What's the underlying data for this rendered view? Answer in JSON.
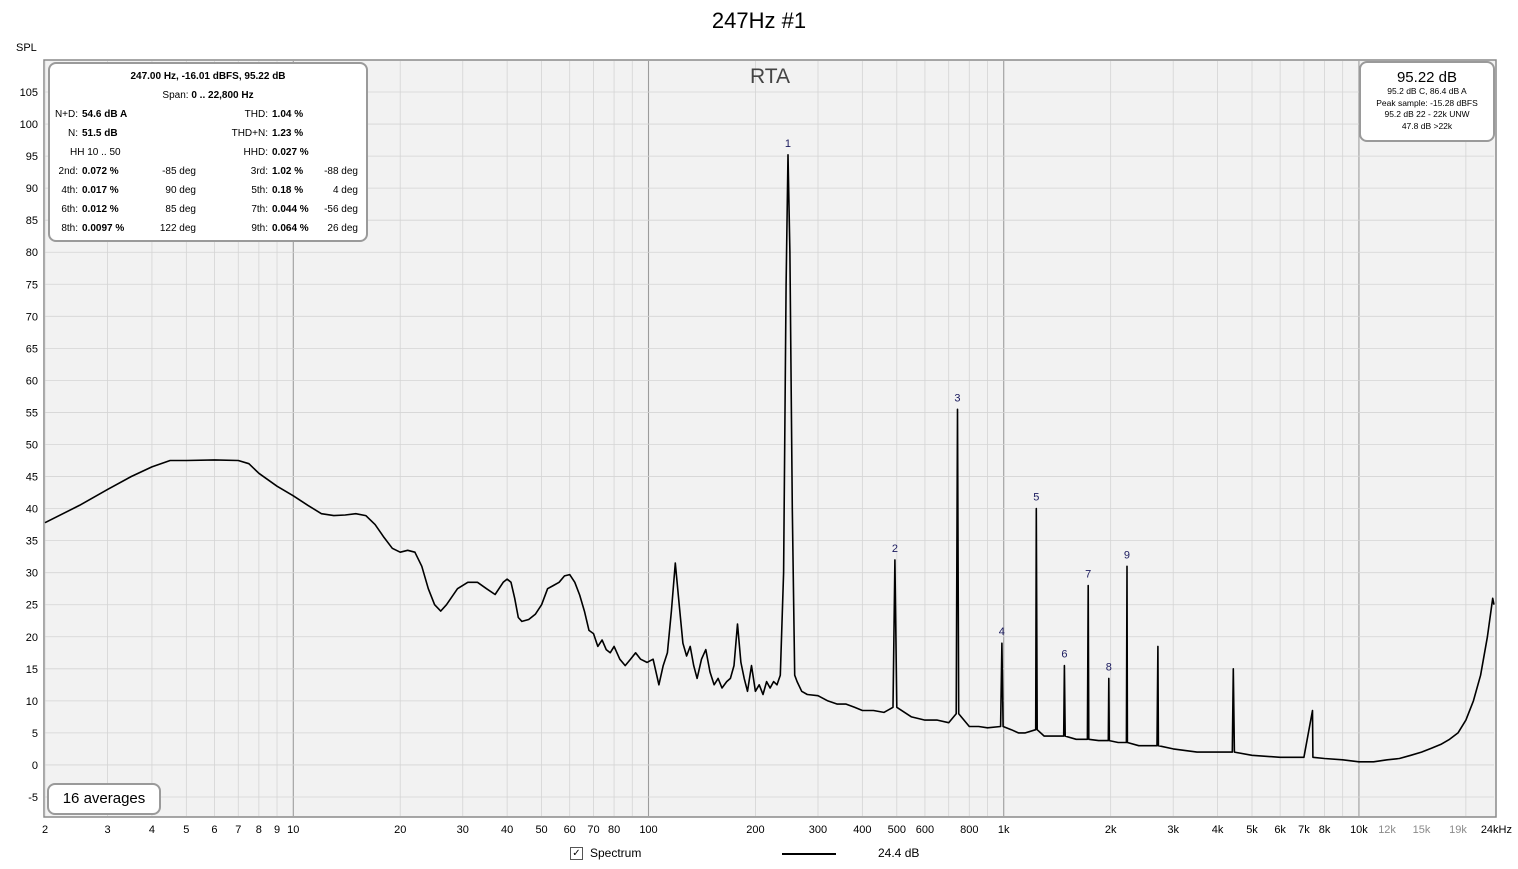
{
  "chart_data": {
    "type": "line",
    "title": "247Hz #1",
    "ylabel": "SPL",
    "plot_label": "RTA",
    "x_scale": "log",
    "xlim": [
      2,
      24000
    ],
    "ylim": [
      -8,
      110
    ],
    "grid": true,
    "y_ticks": [
      105,
      100,
      95,
      90,
      85,
      80,
      75,
      70,
      65,
      60,
      55,
      50,
      45,
      40,
      35,
      30,
      25,
      20,
      15,
      10,
      5,
      0,
      -5
    ],
    "x_ticks": [
      {
        "v": 2,
        "t": "2"
      },
      {
        "v": 3,
        "t": "3"
      },
      {
        "v": 4,
        "t": "4"
      },
      {
        "v": 5,
        "t": "5"
      },
      {
        "v": 6,
        "t": "6"
      },
      {
        "v": 7,
        "t": "7"
      },
      {
        "v": 8,
        "t": "8"
      },
      {
        "v": 9,
        "t": "9"
      },
      {
        "v": 10,
        "t": "10"
      },
      {
        "v": 20,
        "t": "20"
      },
      {
        "v": 30,
        "t": "30"
      },
      {
        "v": 40,
        "t": "40"
      },
      {
        "v": 50,
        "t": "50"
      },
      {
        "v": 60,
        "t": "60"
      },
      {
        "v": 70,
        "t": "70"
      },
      {
        "v": 80,
        "t": "80"
      },
      {
        "v": 100,
        "t": "100"
      },
      {
        "v": 200,
        "t": "200"
      },
      {
        "v": 300,
        "t": "300"
      },
      {
        "v": 400,
        "t": "400"
      },
      {
        "v": 500,
        "t": "500"
      },
      {
        "v": 600,
        "t": "600"
      },
      {
        "v": 800,
        "t": "800"
      },
      {
        "v": 1000,
        "t": "1k"
      },
      {
        "v": 2000,
        "t": "2k"
      },
      {
        "v": 3000,
        "t": "3k"
      },
      {
        "v": 4000,
        "t": "4k"
      },
      {
        "v": 5000,
        "t": "5k"
      },
      {
        "v": 6000,
        "t": "6k"
      },
      {
        "v": 7000,
        "t": "7k"
      },
      {
        "v": 8000,
        "t": "8k"
      },
      {
        "v": 10000,
        "t": "10k"
      },
      {
        "v": 12000,
        "t": "12k",
        "muted": true
      },
      {
        "v": 15000,
        "t": "15k",
        "muted": true
      },
      {
        "v": 19000,
        "t": "19k",
        "muted": true
      },
      {
        "v": 24000,
        "t": "24kHz"
      }
    ],
    "series": [
      {
        "name": "Spectrum",
        "color": "#000000",
        "points": [
          [
            2,
            37.8
          ],
          [
            2.5,
            40.5
          ],
          [
            3,
            43
          ],
          [
            3.5,
            45
          ],
          [
            4,
            46.5
          ],
          [
            4.5,
            47.5
          ],
          [
            5,
            47.5
          ],
          [
            6,
            47.6
          ],
          [
            7,
            47.5
          ],
          [
            7.5,
            47
          ],
          [
            8,
            45.5
          ],
          [
            9,
            43.5
          ],
          [
            10,
            42
          ],
          [
            11,
            40.5
          ],
          [
            12,
            39.2
          ],
          [
            13,
            38.9
          ],
          [
            14,
            39
          ],
          [
            15,
            39.2
          ],
          [
            16,
            38.9
          ],
          [
            17,
            37.5
          ],
          [
            18,
            35.5
          ],
          [
            19,
            33.8
          ],
          [
            20,
            33.2
          ],
          [
            21,
            33.5
          ],
          [
            22,
            33.2
          ],
          [
            23,
            31
          ],
          [
            24,
            27.5
          ],
          [
            25,
            25
          ],
          [
            26,
            24
          ],
          [
            27,
            25
          ],
          [
            29,
            27.5
          ],
          [
            31,
            28.5
          ],
          [
            33,
            28.5
          ],
          [
            35,
            27.5
          ],
          [
            37,
            26.6
          ],
          [
            39,
            28.5
          ],
          [
            40,
            29
          ],
          [
            41,
            28.5
          ],
          [
            42,
            26
          ],
          [
            43,
            23
          ],
          [
            44,
            22.4
          ],
          [
            46,
            22.7
          ],
          [
            48,
            23.5
          ],
          [
            50,
            25
          ],
          [
            52,
            27.5
          ],
          [
            54,
            28
          ],
          [
            56,
            28.5
          ],
          [
            58,
            29.5
          ],
          [
            60,
            29.7
          ],
          [
            62,
            28.5
          ],
          [
            64,
            26.5
          ],
          [
            66,
            24
          ],
          [
            68,
            21
          ],
          [
            70,
            20.5
          ],
          [
            72,
            18.5
          ],
          [
            74,
            19.5
          ],
          [
            76,
            18
          ],
          [
            78,
            17.5
          ],
          [
            80,
            18.5
          ],
          [
            83,
            16.5
          ],
          [
            86,
            15.5
          ],
          [
            89,
            16.5
          ],
          [
            92,
            17.5
          ],
          [
            95,
            16.5
          ],
          [
            99,
            16
          ],
          [
            103,
            16.5
          ],
          [
            107,
            12.5
          ],
          [
            110,
            15.5
          ],
          [
            113,
            17.5
          ],
          [
            116,
            24
          ],
          [
            119,
            31.5
          ],
          [
            122,
            25
          ],
          [
            125,
            19
          ],
          [
            128,
            17
          ],
          [
            131,
            18.5
          ],
          [
            134,
            15.5
          ],
          [
            137,
            13.5
          ],
          [
            141,
            16.5
          ],
          [
            145,
            18
          ],
          [
            149,
            14.5
          ],
          [
            153,
            12.5
          ],
          [
            157,
            13.5
          ],
          [
            161,
            12
          ],
          [
            166,
            13
          ],
          [
            170,
            13.5
          ],
          [
            174,
            15.5
          ],
          [
            178,
            22
          ],
          [
            182,
            16
          ],
          [
            186,
            13.5
          ],
          [
            190,
            11.5
          ],
          [
            195,
            15.5
          ],
          [
            200,
            11.5
          ],
          [
            205,
            12.5
          ],
          [
            210,
            11
          ],
          [
            215,
            13
          ],
          [
            220,
            12
          ],
          [
            225,
            13
          ],
          [
            230,
            12.5
          ],
          [
            235,
            14
          ],
          [
            240,
            30
          ],
          [
            244,
            75
          ],
          [
            247,
            95.2
          ],
          [
            250,
            80
          ],
          [
            254,
            40
          ],
          [
            258,
            14
          ],
          [
            262,
            13
          ],
          [
            270,
            11.5
          ],
          [
            280,
            11
          ],
          [
            300,
            10.8
          ],
          [
            320,
            10
          ],
          [
            340,
            9.5
          ],
          [
            360,
            9.5
          ],
          [
            380,
            9
          ],
          [
            400,
            8.5
          ],
          [
            430,
            8.5
          ],
          [
            460,
            8.2
          ],
          [
            488,
            9
          ],
          [
            494,
            32
          ],
          [
            500,
            9
          ],
          [
            550,
            7.5
          ],
          [
            600,
            7
          ],
          [
            650,
            7
          ],
          [
            700,
            6.6
          ],
          [
            735,
            8
          ],
          [
            741,
            55.5
          ],
          [
            747,
            8
          ],
          [
            800,
            6
          ],
          [
            850,
            6
          ],
          [
            900,
            5.8
          ],
          [
            980,
            6
          ],
          [
            988,
            19
          ],
          [
            996,
            6
          ],
          [
            1050,
            5.5
          ],
          [
            1100,
            5
          ],
          [
            1150,
            5
          ],
          [
            1230,
            5.5
          ],
          [
            1235,
            40
          ],
          [
            1242,
            5.5
          ],
          [
            1300,
            4.5
          ],
          [
            1400,
            4.5
          ],
          [
            1475,
            4.5
          ],
          [
            1482,
            15.5
          ],
          [
            1490,
            4.5
          ],
          [
            1600,
            4
          ],
          [
            1720,
            4
          ],
          [
            1729,
            28
          ],
          [
            1736,
            4
          ],
          [
            1850,
            3.8
          ],
          [
            1970,
            3.8
          ],
          [
            1976,
            13.5
          ],
          [
            1983,
            3.8
          ],
          [
            2100,
            3.5
          ],
          [
            2215,
            3.5
          ],
          [
            2223,
            31
          ],
          [
            2230,
            3.5
          ],
          [
            2400,
            3
          ],
          [
            2700,
            3
          ],
          [
            2717,
            18.5
          ],
          [
            2725,
            3
          ],
          [
            3000,
            2.5
          ],
          [
            3500,
            2
          ],
          [
            4000,
            2
          ],
          [
            4400,
            2
          ],
          [
            4430,
            15
          ],
          [
            4460,
            2
          ],
          [
            5000,
            1.5
          ],
          [
            6000,
            1.2
          ],
          [
            7000,
            1.2
          ],
          [
            7400,
            8.5
          ],
          [
            7420,
            1.2
          ],
          [
            8000,
            1
          ],
          [
            9000,
            0.8
          ],
          [
            10000,
            0.5
          ],
          [
            11000,
            0.5
          ],
          [
            12000,
            0.8
          ],
          [
            13000,
            1
          ],
          [
            14000,
            1.5
          ],
          [
            15000,
            2
          ],
          [
            16000,
            2.6
          ],
          [
            17000,
            3.2
          ],
          [
            18000,
            4
          ],
          [
            19000,
            5
          ],
          [
            20000,
            7
          ],
          [
            21000,
            10
          ],
          [
            22000,
            14
          ],
          [
            23000,
            20
          ],
          [
            23800,
            26
          ],
          [
            24000,
            25
          ]
        ]
      }
    ],
    "harmonic_markers": [
      {
        "label": "1",
        "x": 247,
        "y": 95.2
      },
      {
        "label": "2",
        "x": 494,
        "y": 32
      },
      {
        "label": "3",
        "x": 741,
        "y": 55.5
      },
      {
        "label": "4",
        "x": 988,
        "y": 19
      },
      {
        "label": "5",
        "x": 1235,
        "y": 40
      },
      {
        "label": "6",
        "x": 1482,
        "y": 15.5
      },
      {
        "label": "7",
        "x": 1729,
        "y": 28
      },
      {
        "label": "8",
        "x": 1976,
        "y": 13.5
      },
      {
        "label": "9",
        "x": 2223,
        "y": 31
      }
    ]
  },
  "stats_panel": {
    "header": "247.00 Hz, -16.01 dBFS, 95.22 dB",
    "span_label": "Span:",
    "span_value": "0 .. 22,800 Hz",
    "nd_label": "N+D:",
    "nd_value": "54.6 dB A",
    "thd_label": "THD:",
    "thd_value": "1.04 %",
    "n_label": "N:",
    "n_value": "51.5 dB",
    "thdn_label": "THD+N:",
    "thdn_value": "1.23 %",
    "hh_label": "HH 10 .. 50",
    "hhd_label": "HHD:",
    "hhd_value": "0.027 %",
    "h2_label": "2nd:",
    "h2_value": "0.072 %",
    "h2_phase": "-85 deg",
    "h3_label": "3rd:",
    "h3_value": "1.02 %",
    "h3_phase": "-88 deg",
    "h4_label": "4th:",
    "h4_value": "0.017 %",
    "h4_phase": "90 deg",
    "h5_label": "5th:",
    "h5_value": "0.18 %",
    "h5_phase": "4 deg",
    "h6_label": "6th:",
    "h6_value": "0.012 %",
    "h6_phase": "85 deg",
    "h7_label": "7th:",
    "h7_value": "0.044 %",
    "h7_phase": "-56 deg",
    "h8_label": "8th:",
    "h8_value": "0.0097 %",
    "h8_phase": "122 deg",
    "h9_label": "9th:",
    "h9_value": "0.064 %",
    "h9_phase": "26 deg"
  },
  "summary_panel": {
    "level": "95.22 dB",
    "line1": "95.2 dB C, 86.4 dB A",
    "line2": "Peak sample: -15.28 dBFS",
    "line3": "95.2 dB 22 - 22k UNW",
    "line4": "47.8 dB >22k"
  },
  "averages_label": "16 averages",
  "legend": {
    "checked": true,
    "check_glyph": "✓",
    "label": "Spectrum",
    "value": "24.4 dB",
    "line_color": "#000000"
  },
  "colors": {
    "plot_bg": "#f2f2f2",
    "grid_minor": "#d4d4d4",
    "grid_major": "#9c9c9c",
    "panel_border": "#9a9a9a",
    "marker_text": "#1a1a5e"
  }
}
